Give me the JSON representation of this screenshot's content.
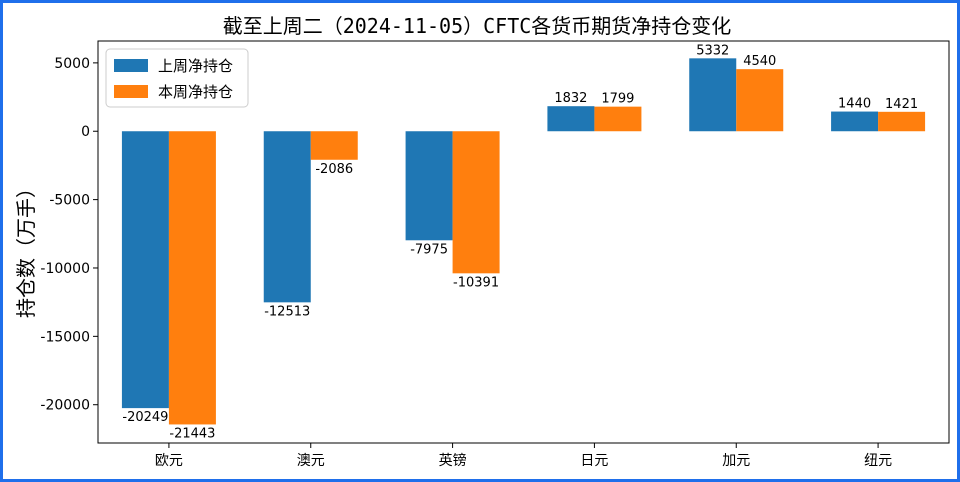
{
  "chart_data": {
    "type": "bar",
    "title": "截至上周二（2024-11-05）CFTC各货币期货净持仓变化",
    "xlabel": "",
    "ylabel": "持仓数（万手）",
    "categories": [
      "欧元",
      "澳元",
      "英镑",
      "日元",
      "加元",
      "纽元"
    ],
    "series": [
      {
        "name": "上周净持仓",
        "color": "#1f77b4",
        "values": [
          -20249,
          -12513,
          -7975,
          1832,
          5332,
          1440
        ]
      },
      {
        "name": "本周净持仓",
        "color": "#ff7f0e",
        "values": [
          -21443,
          -2086,
          -10391,
          1799,
          4540,
          1421
        ]
      }
    ],
    "ylim": [
      -22800,
      6600
    ],
    "yticks": [
      5000,
      0,
      -5000,
      -10000,
      -15000,
      -20000
    ],
    "grid": false,
    "legend_position": "top-left"
  }
}
